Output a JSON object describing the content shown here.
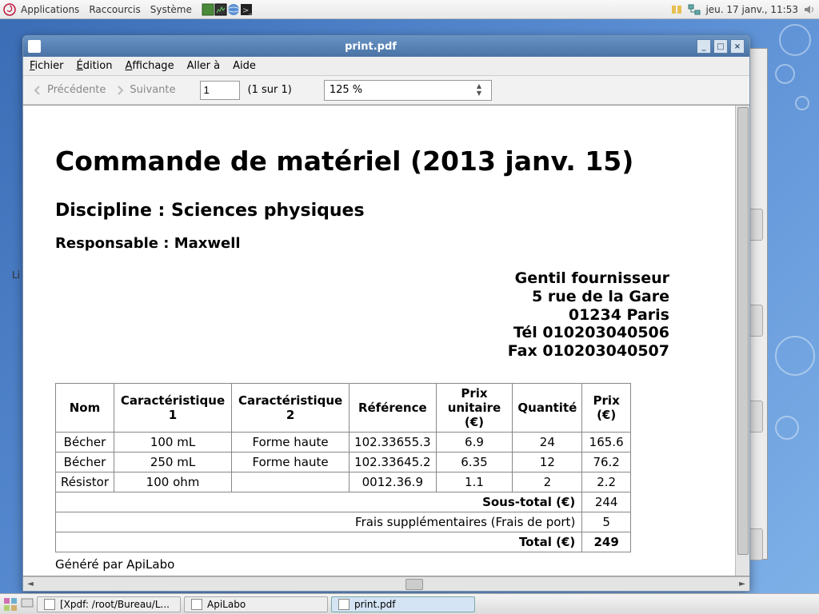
{
  "topbar": {
    "menus": [
      "Applications",
      "Raccourcis",
      "Système"
    ],
    "clock": "jeu. 17 janv., 11:53"
  },
  "leftLabel": "Li",
  "window": {
    "title": "print.pdf",
    "menus": [
      {
        "u": "F",
        "rest": "ichier"
      },
      {
        "u": "É",
        "rest": "dition"
      },
      {
        "u": "A",
        "rest": "ffichage"
      },
      {
        "u": "",
        "rest": "Aller à"
      },
      {
        "u": "",
        "rest": "Aide"
      }
    ],
    "nav": {
      "prev": "Précédente",
      "next": "Suivante"
    },
    "page": {
      "current": "1",
      "of": "(1 sur 1)"
    },
    "zoom": "125 %"
  },
  "doc": {
    "title": "Commande de matériel (2013 janv. 15)",
    "discipline": "Discipline : Sciences physiques",
    "responsable": "Responsable : Maxwell",
    "supplier": [
      "Gentil fournisseur",
      "5 rue de la Gare",
      "01234 Paris",
      "Tél 010203040506",
      "Fax 010203040507"
    ],
    "columns": [
      "Nom",
      "Caractéristique 1",
      "Caractéristique 2",
      "Référence",
      "Prix unitaire (€)",
      "Quantité",
      "Prix (€)"
    ],
    "rows": [
      [
        "Bécher",
        "100 mL",
        "Forme haute",
        "102.33655.3",
        "6.9",
        "24",
        "165.6"
      ],
      [
        "Bécher",
        "250 mL",
        "Forme haute",
        "102.33645.2",
        "6.35",
        "12",
        "76.2"
      ],
      [
        "Résistor",
        "100 ohm",
        "",
        "0012.36.9",
        "1.1",
        "2",
        "2.2"
      ]
    ],
    "subtotal_label": "Sous-total (€)",
    "subtotal": "244",
    "fees_label": "Frais supplémentaires (Frais de port)",
    "fees": "5",
    "total_label": "Total (€)",
    "total": "249",
    "generated": "Généré par ApiLabo"
  },
  "taskbar": {
    "tasks": [
      {
        "label": "[Xpdf: /root/Bureau/L..."
      },
      {
        "label": "ApiLabo"
      },
      {
        "label": "print.pdf",
        "active": true
      }
    ]
  }
}
